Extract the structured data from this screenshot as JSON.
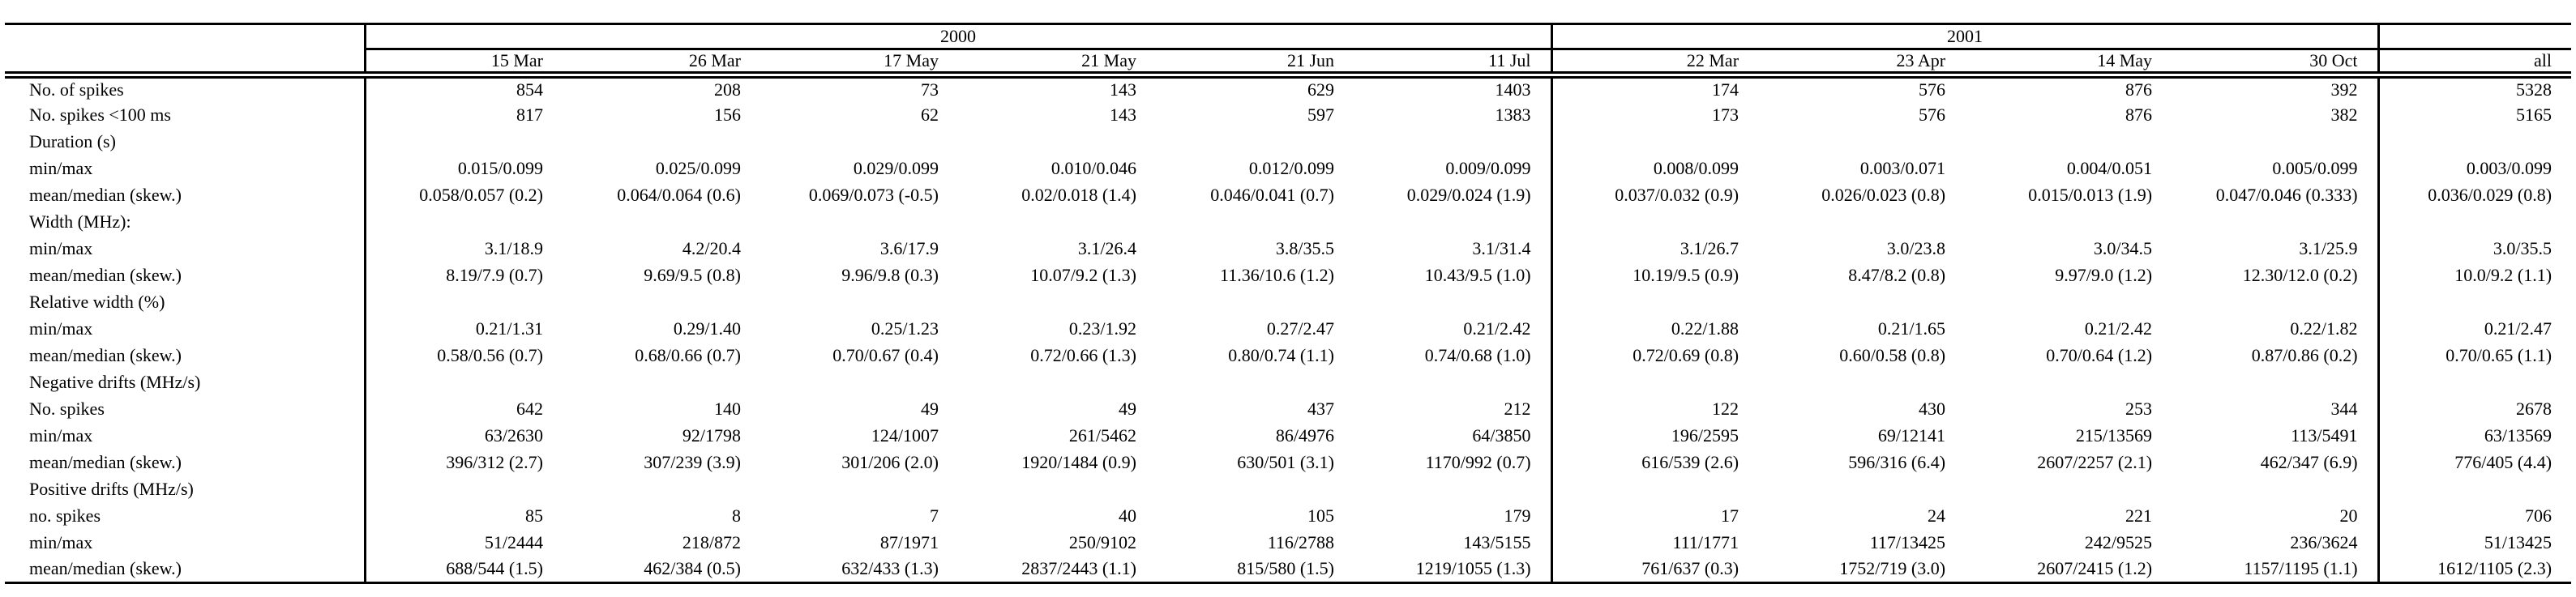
{
  "table": {
    "year_groups": [
      {
        "label": "2000",
        "span": 6
      },
      {
        "label": "2001",
        "span": 4
      }
    ],
    "columns": [
      "15 Mar",
      "26 Mar",
      "17 May",
      "21 May",
      "21 Jun",
      "11 Jul",
      "22 Mar",
      "23 Apr",
      "14 May",
      "30 Oct",
      "all"
    ],
    "rows": [
      {
        "label": "No. of spikes",
        "section": false,
        "values": [
          "854",
          "208",
          "73",
          "143",
          "629",
          "1403",
          "174",
          "576",
          "876",
          "392",
          "5328"
        ]
      },
      {
        "label": "No. spikes <100 ms",
        "section": false,
        "values": [
          "817",
          "156",
          "62",
          "143",
          "597",
          "1383",
          "173",
          "576",
          "876",
          "382",
          "5165"
        ]
      },
      {
        "label": "Duration (s)",
        "section": true,
        "values": []
      },
      {
        "label": "min/max",
        "section": false,
        "values": [
          "0.015/0.099",
          "0.025/0.099",
          "0.029/0.099",
          "0.010/0.046",
          "0.012/0.099",
          "0.009/0.099",
          "0.008/0.099",
          "0.003/0.071",
          "0.004/0.051",
          "0.005/0.099",
          "0.003/0.099"
        ]
      },
      {
        "label": "mean/median (skew.)",
        "section": false,
        "values": [
          "0.058/0.057 (0.2)",
          "0.064/0.064 (0.6)",
          "0.069/0.073 (-0.5)",
          "0.02/0.018 (1.4)",
          "0.046/0.041 (0.7)",
          "0.029/0.024 (1.9)",
          "0.037/0.032 (0.9)",
          "0.026/0.023 (0.8)",
          "0.015/0.013 (1.9)",
          "0.047/0.046 (0.333)",
          "0.036/0.029 (0.8)"
        ]
      },
      {
        "label": "Width (MHz):",
        "section": true,
        "values": []
      },
      {
        "label": "min/max",
        "section": false,
        "values": [
          "3.1/18.9",
          "4.2/20.4",
          "3.6/17.9",
          "3.1/26.4",
          "3.8/35.5",
          "3.1/31.4",
          "3.1/26.7",
          "3.0/23.8",
          "3.0/34.5",
          "3.1/25.9",
          "3.0/35.5"
        ]
      },
      {
        "label": "mean/median (skew.)",
        "section": false,
        "values": [
          "8.19/7.9 (0.7)",
          "9.69/9.5 (0.8)",
          "9.96/9.8 (0.3)",
          "10.07/9.2 (1.3)",
          "11.36/10.6 (1.2)",
          "10.43/9.5 (1.0)",
          "10.19/9.5 (0.9)",
          "8.47/8.2 (0.8)",
          "9.97/9.0 (1.2)",
          "12.30/12.0 (0.2)",
          "10.0/9.2 (1.1)"
        ]
      },
      {
        "label": "Relative width (%)",
        "section": true,
        "values": []
      },
      {
        "label": "min/max",
        "section": false,
        "values": [
          "0.21/1.31",
          "0.29/1.40",
          "0.25/1.23",
          "0.23/1.92",
          "0.27/2.47",
          "0.21/2.42",
          "0.22/1.88",
          "0.21/1.65",
          "0.21/2.42",
          "0.22/1.82",
          "0.21/2.47"
        ]
      },
      {
        "label": "mean/median (skew.)",
        "section": false,
        "values": [
          "0.58/0.56 (0.7)",
          "0.68/0.66 (0.7)",
          "0.70/0.67 (0.4)",
          "0.72/0.66 (1.3)",
          "0.80/0.74 (1.1)",
          "0.74/0.68 (1.0)",
          "0.72/0.69 (0.8)",
          "0.60/0.58 (0.8)",
          "0.70/0.64 (1.2)",
          "0.87/0.86 (0.2)",
          "0.70/0.65 (1.1)"
        ]
      },
      {
        "label": "Negative drifts (MHz/s)",
        "section": true,
        "values": []
      },
      {
        "label": "No. spikes",
        "section": false,
        "values": [
          "642",
          "140",
          "49",
          "49",
          "437",
          "212",
          "122",
          "430",
          "253",
          "344",
          "2678"
        ]
      },
      {
        "label": "min/max",
        "section": false,
        "values": [
          "63/2630",
          "92/1798",
          "124/1007",
          "261/5462",
          "86/4976",
          "64/3850",
          "196/2595",
          "69/12141",
          "215/13569",
          "113/5491",
          "63/13569"
        ]
      },
      {
        "label": "mean/median (skew.)",
        "section": false,
        "values": [
          "396/312 (2.7)",
          "307/239 (3.9)",
          "301/206 (2.0)",
          "1920/1484 (0.9)",
          "630/501 (3.1)",
          "1170/992 (0.7)",
          "616/539 (2.6)",
          "596/316 (6.4)",
          "2607/2257 (2.1)",
          "462/347 (6.9)",
          "776/405 (4.4)"
        ]
      },
      {
        "label": "Positive drifts (MHz/s)",
        "section": true,
        "values": []
      },
      {
        "label": "no. spikes",
        "section": false,
        "values": [
          "85",
          "8",
          "7",
          "40",
          "105",
          "179",
          "17",
          "24",
          "221",
          "20",
          "706"
        ]
      },
      {
        "label": "min/max",
        "section": false,
        "values": [
          "51/2444",
          "218/872",
          "87/1971",
          "250/9102",
          "116/2788",
          "143/5155",
          "111/1771",
          "117/13425",
          "242/9525",
          "236/3624",
          "51/13425"
        ]
      },
      {
        "label": "mean/median (skew.)",
        "section": false,
        "values": [
          "688/544 (1.5)",
          "462/384 (0.5)",
          "632/433 (1.3)",
          "2837/2443 (1.1)",
          "815/580 (1.5)",
          "1219/1055 (1.3)",
          "761/637 (0.3)",
          "1752/719 (3.0)",
          "2607/2415 (1.2)",
          "1157/1195 (1.1)",
          "1612/1105 (2.3)"
        ]
      }
    ]
  }
}
